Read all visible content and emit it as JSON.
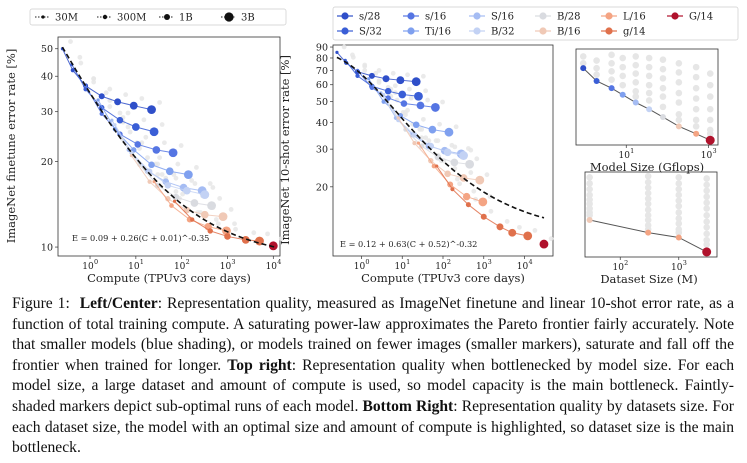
{
  "colors": {
    "s28": "#2f4fc9",
    "S32": "#3a5ed6",
    "s16": "#5575e3",
    "Ti16": "#7fa0ef",
    "S16": "#a5bcf3",
    "B32": "#c3d2f4",
    "B28": "#d9dbe0",
    "B16": "#f0c9b6",
    "L16": "#f4a483",
    "g14": "#e0714c",
    "G14": "#b0122c",
    "suboptimal": "#e6e6e6",
    "frontier": "#111111"
  },
  "size_legend": [
    {
      "label": "30M",
      "radius": 1.6
    },
    {
      "label": "300M",
      "radius": 2.2
    },
    {
      "label": "1B",
      "radius": 3.0
    },
    {
      "label": "3B",
      "radius": 4.6
    }
  ],
  "model_legend": [
    {
      "label": "s/28",
      "color_key": "s28"
    },
    {
      "label": "s/16",
      "color_key": "s16"
    },
    {
      "label": "S/16",
      "color_key": "S16"
    },
    {
      "label": "B/28",
      "color_key": "B28"
    },
    {
      "label": "L/16",
      "color_key": "L16"
    },
    {
      "label": "G/14",
      "color_key": "G14"
    },
    {
      "label": "S/32",
      "color_key": "S32"
    },
    {
      "label": "Ti/16",
      "color_key": "Ti16"
    },
    {
      "label": "B/32",
      "color_key": "B32"
    },
    {
      "label": "B/16",
      "color_key": "B16"
    },
    {
      "label": "g/14",
      "color_key": "g14"
    }
  ],
  "chart_data": [
    {
      "id": "left",
      "type": "scatter",
      "title": "",
      "xlabel": "Compute (TPUv3 core days)",
      "ylabel": "ImageNet finetune error rate [%]",
      "xscale": "log",
      "yscale": "log",
      "xlim": [
        0.2,
        14000
      ],
      "ylim": [
        9.3,
        55
      ],
      "xticks": [
        {
          "v": 1,
          "label": "10",
          "exp": "0"
        },
        {
          "v": 10,
          "label": "10",
          "exp": "1"
        },
        {
          "v": 100,
          "label": "10",
          "exp": "2"
        },
        {
          "v": 1000,
          "label": "10",
          "exp": "3"
        },
        {
          "v": 10000,
          "label": "10",
          "exp": "4"
        }
      ],
      "yticks": [
        {
          "v": 10,
          "label": "10"
        },
        {
          "v": 20,
          "label": "20"
        },
        {
          "v": 30,
          "label": "30"
        },
        {
          "v": 40,
          "label": "40"
        },
        {
          "v": 50,
          "label": "50"
        }
      ],
      "fit_label": "E = 0.09 + 0.26(C + 0.01)^-0.35",
      "fit": {
        "a": 0.09,
        "b": 0.26,
        "c": 0.01,
        "p": 0.35,
        "x_from": 0.25,
        "x_to": 11000
      },
      "series": [
        {
          "name": "s/28",
          "color_key": "s28",
          "x": [
            0.25,
            0.42,
            0.8,
            1.8,
            4,
            9,
            22
          ],
          "y": [
            50,
            42,
            37,
            34,
            32.5,
            31.5,
            30.5
          ]
        },
        {
          "name": "S/32",
          "color_key": "S32",
          "x": [
            0.4,
            0.8,
            1.8,
            4.5,
            10,
            25
          ],
          "y": [
            44,
            36,
            31,
            28,
            26.5,
            25.5
          ]
        },
        {
          "name": "s/16",
          "color_key": "s16",
          "x": [
            0.8,
            1.8,
            4.5,
            11,
            28,
            65
          ],
          "y": [
            37,
            29.5,
            25,
            23,
            22,
            21.5
          ]
        },
        {
          "name": "Ti/16",
          "color_key": "Ti16",
          "x": [
            1.5,
            3.5,
            9,
            22,
            55,
            140
          ],
          "y": [
            33,
            26,
            22,
            19.5,
            18.5,
            18
          ]
        },
        {
          "name": "S/16",
          "color_key": "S16",
          "x": [
            3,
            7,
            18,
            45,
            110,
            280
          ],
          "y": [
            28,
            22,
            18.5,
            17,
            16.2,
            15.8
          ]
        },
        {
          "name": "B/32",
          "color_key": "B32",
          "x": [
            3.5,
            8,
            20,
            50,
            130,
            320
          ],
          "y": [
            27,
            21.5,
            18.5,
            16.5,
            15.8,
            15.3
          ]
        },
        {
          "name": "B/28",
          "color_key": "B28",
          "x": [
            5,
            12,
            30,
            75,
            190,
            450
          ],
          "y": [
            24,
            19.5,
            16.5,
            15,
            14.3,
            14
          ]
        },
        {
          "name": "B/16",
          "color_key": "B16",
          "x": [
            8,
            20,
            50,
            130,
            320,
            800
          ],
          "y": [
            21,
            17,
            14.8,
            13.5,
            13,
            12.8
          ]
        },
        {
          "name": "L/16",
          "color_key": "L16",
          "x": [
            25,
            60,
            150,
            380,
            950
          ],
          "y": [
            17,
            14,
            12.5,
            11.8,
            11.4
          ]
        },
        {
          "name": "g/14",
          "color_key": "g14",
          "x": [
            70,
            170,
            420,
            1000,
            2500,
            5000
          ],
          "y": [
            14.5,
            12.5,
            11.4,
            10.9,
            10.6,
            10.5
          ]
        },
        {
          "name": "G/14",
          "color_key": "G14",
          "x": [
            10000
          ],
          "y": [
            10.1
          ]
        }
      ]
    },
    {
      "id": "center",
      "type": "scatter",
      "title": "",
      "xlabel": "Compute (TPUv3 core days)",
      "ylabel": "ImageNet 10-shot error rate [%]",
      "xscale": "log",
      "yscale": "log",
      "xlim": [
        0.2,
        50000
      ],
      "ylim": [
        9.5,
        92
      ],
      "xticks": [
        {
          "v": 1,
          "label": "10",
          "exp": "0"
        },
        {
          "v": 10,
          "label": "10",
          "exp": "1"
        },
        {
          "v": 100,
          "label": "10",
          "exp": "2"
        },
        {
          "v": 1000,
          "label": "10",
          "exp": "3"
        },
        {
          "v": 10000,
          "label": "10",
          "exp": "4"
        }
      ],
      "yticks": [
        {
          "v": 20,
          "label": "20"
        },
        {
          "v": 30,
          "label": "30"
        },
        {
          "v": 40,
          "label": "40"
        },
        {
          "v": 50,
          "label": "50"
        },
        {
          "v": 60,
          "label": "60"
        },
        {
          "v": 70,
          "label": "70"
        },
        {
          "v": 80,
          "label": "80"
        },
        {
          "v": 90,
          "label": "90"
        }
      ],
      "fit_label": "E = 0.12 + 0.63(C + 0.52)^-0.32",
      "fit": {
        "a": 0.12,
        "b": 0.63,
        "c": 0.52,
        "p": 0.32,
        "x_from": 0.25,
        "x_to": 30000
      },
      "series": [
        {
          "name": "s/28",
          "color_key": "s28",
          "x": [
            0.25,
            0.42,
            0.8,
            1.8,
            4,
            9,
            22
          ],
          "y": [
            85,
            76,
            69,
            66,
            64,
            63,
            62
          ]
        },
        {
          "name": "S/32",
          "color_key": "S32",
          "x": [
            0.4,
            0.8,
            1.8,
            4.5,
            10,
            25
          ],
          "y": [
            78,
            66,
            59,
            56,
            54,
            53
          ]
        },
        {
          "name": "s/16",
          "color_key": "s16",
          "x": [
            0.8,
            1.8,
            4.5,
            11,
            28,
            65
          ],
          "y": [
            70,
            58,
            52,
            49,
            48,
            47
          ]
        },
        {
          "name": "Ti/16",
          "color_key": "Ti16",
          "x": [
            1.5,
            3.5,
            9,
            22,
            55,
            140
          ],
          "y": [
            64,
            50,
            43,
            39,
            37,
            36
          ]
        },
        {
          "name": "S/16",
          "color_key": "S16",
          "x": [
            3,
            7,
            18,
            45,
            110,
            280
          ],
          "y": [
            55,
            42,
            35,
            31,
            29.5,
            28.5
          ]
        },
        {
          "name": "B/32",
          "color_key": "B32",
          "x": [
            3.5,
            8,
            20,
            50,
            130,
            320
          ],
          "y": [
            54,
            41,
            35,
            31,
            29,
            28
          ]
        },
        {
          "name": "B/28",
          "color_key": "B28",
          "x": [
            5,
            12,
            30,
            75,
            190,
            450
          ],
          "y": [
            48,
            37,
            31,
            27.5,
            26,
            25.5
          ]
        },
        {
          "name": "B/16",
          "color_key": "B16",
          "x": [
            8,
            20,
            50,
            130,
            320,
            800
          ],
          "y": [
            42,
            32,
            26.5,
            23,
            22,
            21.5
          ]
        },
        {
          "name": "L/16",
          "color_key": "L16",
          "x": [
            25,
            60,
            150,
            380,
            950
          ],
          "y": [
            32,
            25,
            20.5,
            18,
            17
          ]
        },
        {
          "name": "g/14",
          "color_key": "g14",
          "x": [
            70,
            170,
            420,
            1000,
            2500,
            5000,
            12000
          ],
          "y": [
            25,
            19.5,
            16.5,
            14.5,
            13,
            12.2,
            11.8
          ]
        },
        {
          "name": "G/14",
          "color_key": "G14",
          "x": [
            30000
          ],
          "y": [
            10.8
          ]
        }
      ]
    },
    {
      "id": "top-right",
      "type": "scatter",
      "title": "",
      "xlabel": "Model Size (Gflops)",
      "ylabel": "",
      "xscale": "log",
      "yscale": "log",
      "xlim": [
        0.6,
        1700
      ],
      "ylim": [
        9.5,
        70
      ],
      "xticks": [
        {
          "v": 10,
          "label": "10",
          "exp": "1"
        },
        {
          "v": 1000,
          "label": "10",
          "exp": "3"
        }
      ],
      "yticks": [],
      "frontier": {
        "x": [
          0.9,
          1.9,
          4.4,
          8.2,
          17,
          36,
          78,
          190,
          500,
          1100
        ],
        "y": [
          47,
          36,
          31,
          27,
          23,
          20,
          17,
          14,
          12,
          10.5
        ],
        "colors": [
          "s28",
          "S32",
          "s16",
          "Ti16",
          "S16",
          "B32",
          "B28",
          "B16",
          "L16",
          "G14"
        ]
      },
      "suboptimal": [
        {
          "x": 0.9,
          "y": [
            60,
            52
          ]
        },
        {
          "x": 1.9,
          "y": [
            55,
            47,
            41
          ]
        },
        {
          "x": 4.4,
          "y": [
            62,
            52,
            44,
            37
          ]
        },
        {
          "x": 8.2,
          "y": [
            58,
            48,
            40,
            33
          ]
        },
        {
          "x": 17,
          "y": [
            60,
            50,
            42,
            35,
            29,
            26
          ]
        },
        {
          "x": 36,
          "y": [
            58,
            48,
            40,
            33,
            28,
            24
          ]
        },
        {
          "x": 78,
          "y": [
            56,
            46,
            38,
            31,
            26,
            21
          ]
        },
        {
          "x": 190,
          "y": [
            52,
            43,
            35,
            28,
            23,
            18,
            16
          ]
        },
        {
          "x": 500,
          "y": [
            48,
            39,
            31,
            25,
            20,
            16,
            14
          ]
        },
        {
          "x": 1100,
          "y": [
            42,
            33,
            26,
            20,
            16,
            13,
            12
          ]
        }
      ]
    },
    {
      "id": "bottom-right",
      "type": "scatter",
      "title": "",
      "xlabel": "Dataset Size (M)",
      "ylabel": "",
      "xscale": "log",
      "yscale": "log",
      "xlim": [
        25,
        4500
      ],
      "ylim": [
        9.5,
        80
      ],
      "xticks": [
        {
          "v": 100,
          "label": "10",
          "exp": "2"
        },
        {
          "v": 1000,
          "label": "10",
          "exp": "3"
        }
      ],
      "yticks": [],
      "frontier": {
        "x": [
          30,
          300,
          1000,
          3000
        ],
        "y": [
          24,
          17.5,
          15.5,
          10.8
        ],
        "colors": [
          "B16",
          "L16",
          "L16",
          "G14"
        ]
      },
      "suboptimal": [
        {
          "x": 30,
          "y": [
            70,
            60,
            52,
            45,
            40,
            36,
            32,
            29,
            27
          ]
        },
        {
          "x": 300,
          "y": [
            72,
            62,
            54,
            47,
            41,
            36,
            31,
            27,
            24,
            21,
            19
          ]
        },
        {
          "x": 1000,
          "y": [
            70,
            60,
            52,
            45,
            39,
            34,
            29,
            25,
            22,
            19,
            17.5
          ]
        },
        {
          "x": 3000,
          "y": [
            68,
            58,
            50,
            43,
            37,
            32,
            27,
            23,
            20,
            17,
            14.5,
            13
          ]
        }
      ]
    }
  ],
  "caption": {
    "figure_label": "Figure 1:",
    "lead1": "Left/Center",
    "text1": ": Representation quality, measured as ImageNet finetune and linear 10-shot error rate, as a function of total training compute. A saturating power-law approximates the Pareto frontier fairly accurately. Note that smaller models (blue shading), or models trained on fewer images (smaller markers), saturate and fall off the frontier when trained for longer.",
    "lead2": "Top right",
    "text2": ": Representation quality when bottlenecked by model size. For each model size, a large dataset and amount of compute is used, so model capacity is the main bottleneck. Faintly-shaded markers depict sub-optimal runs of each model.",
    "lead3": "Bottom Right",
    "text3": ": Representation quality by datasets size. For each dataset size, the model with an optimal size and amount of compute is highlighted, so dataset size is the main bottleneck."
  }
}
